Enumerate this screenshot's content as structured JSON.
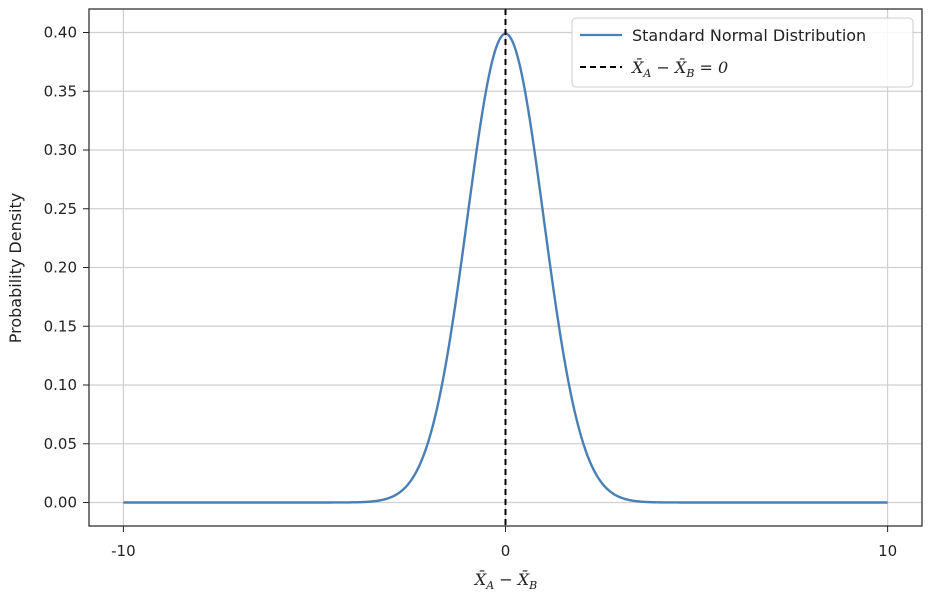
{
  "chart_data": {
    "type": "line",
    "xlabel_parts": [
      "X̄",
      "A",
      " − ",
      "X̄",
      "B"
    ],
    "ylabel": "Probability Density",
    "xlim": [
      -10.9,
      10.9
    ],
    "ylim": [
      -0.02,
      0.42
    ],
    "x_ticks": [
      -10,
      0,
      10
    ],
    "x_tick_labels": [
      "-10",
      "0",
      "10"
    ],
    "y_ticks": [
      0.0,
      0.05,
      0.1,
      0.15,
      0.2,
      0.25,
      0.3,
      0.35,
      0.4
    ],
    "y_tick_labels": [
      "0.00",
      "0.05",
      "0.10",
      "0.15",
      "0.20",
      "0.25",
      "0.30",
      "0.35",
      "0.40"
    ],
    "grid": true,
    "legend_position": "top-right",
    "series": [
      {
        "name": "Standard Normal Distribution",
        "color": "#4a7fb5",
        "style": "solid",
        "x": [
          -10,
          -5,
          -4,
          -3.5,
          -3,
          -2.5,
          -2,
          -1.5,
          -1,
          -0.5,
          0,
          0.5,
          1,
          1.5,
          2,
          2.5,
          3,
          3.5,
          4,
          5,
          10
        ],
        "y": [
          0.0,
          0.0,
          0.0001,
          0.0009,
          0.0044,
          0.0175,
          0.054,
          0.1295,
          0.242,
          0.3521,
          0.3989,
          0.3521,
          0.242,
          0.1295,
          0.054,
          0.0175,
          0.0044,
          0.0009,
          0.0001,
          0.0,
          0.0
        ]
      }
    ],
    "vline": {
      "x": 0,
      "color": "#000000",
      "style": "dashed",
      "legend_parts": [
        "X̄",
        "A",
        " − ",
        "X̄",
        "B",
        " = 0"
      ]
    }
  }
}
